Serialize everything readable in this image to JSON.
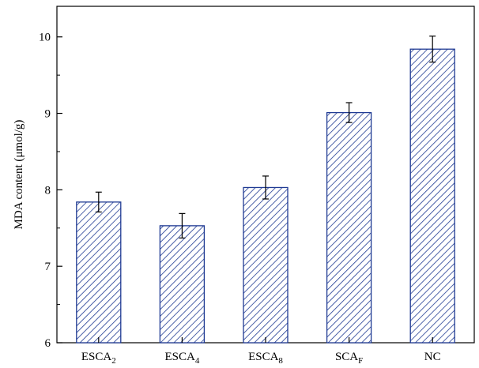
{
  "chart_data": {
    "type": "bar",
    "title": "",
    "xlabel": "",
    "ylabel": "MDA content (μmol/g)",
    "ylim": [
      6,
      10.4
    ],
    "yticks": [
      6,
      7,
      8,
      9,
      10
    ],
    "grid": false,
    "legend": "none",
    "categories": [
      {
        "base": "ESCA",
        "sub": "2"
      },
      {
        "base": "ESCA",
        "sub": "4"
      },
      {
        "base": "ESCA",
        "sub": "8"
      },
      {
        "base": "SCA",
        "sub": "F"
      },
      {
        "base": "NC",
        "sub": ""
      }
    ],
    "values": [
      7.84,
      7.53,
      8.03,
      9.01,
      9.84
    ],
    "errors": [
      0.13,
      0.16,
      0.15,
      0.13,
      0.17
    ],
    "bar_fill": "hatched",
    "bar_color": "#1f3a93"
  }
}
